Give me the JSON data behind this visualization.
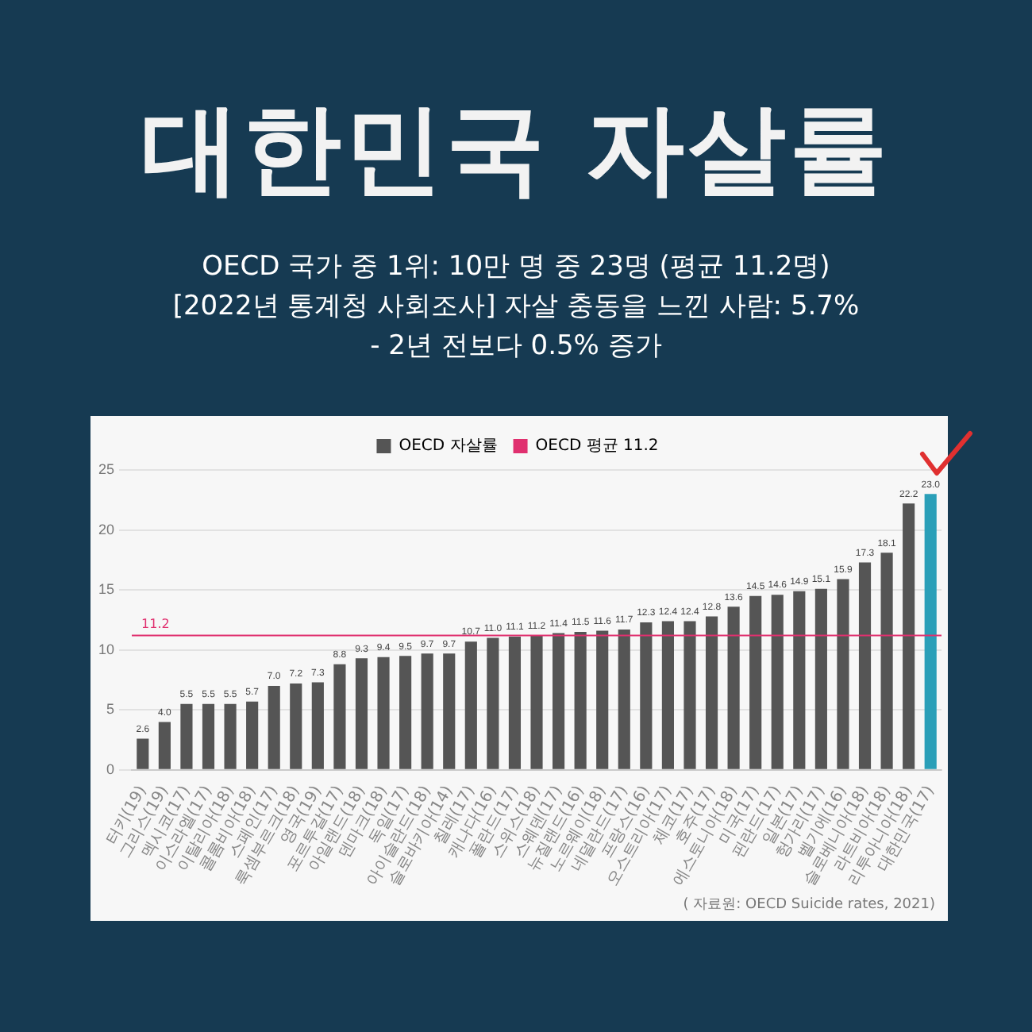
{
  "chart_data": {
    "type": "bar",
    "title": "대한민국 자살률",
    "subtitle": "OECD 국가 중 1위: 10만 명 중 23명 (평균 11.2명)\n[2022년 통계청 사회조사] 자살 충동을 느낀 사람: 5.7%\n- 2년 전보다 0.5% 증가",
    "categories": [
      "터키(19)",
      "그리스(19)",
      "멕시코(17)",
      "이스라엘(17)",
      "이탈리아(18)",
      "콜롬비아(18)",
      "스페인(17)",
      "룩셈부르크(18)",
      "영국(19)",
      "포르투갈(17)",
      "아일랜드(18)",
      "덴마크(18)",
      "독일(17)",
      "아이슬란드(18)",
      "슬로바키아(14)",
      "칠레(17)",
      "캐나다(16)",
      "폴란드(17)",
      "스위스(18)",
      "스웨덴(17)",
      "뉴질랜드(16)",
      "노르웨이(18)",
      "네덜란드(17)",
      "프랑스(16)",
      "오스트리아(17)",
      "체코(17)",
      "호주(17)",
      "에스토니아(18)",
      "미국(17)",
      "핀란드(17)",
      "일본(17)",
      "헝가리(17)",
      "벨기에(16)",
      "슬로베니아(18)",
      "라트비아(18)",
      "리투아니아(18)",
      "대한민국(17)"
    ],
    "series": [
      {
        "name": "OECD 자살률",
        "color": "#555555",
        "colors": [
          "#555555",
          "#555555",
          "#555555",
          "#555555",
          "#555555",
          "#555555",
          "#555555",
          "#555555",
          "#555555",
          "#555555",
          "#555555",
          "#555555",
          "#555555",
          "#555555",
          "#555555",
          "#555555",
          "#555555",
          "#555555",
          "#555555",
          "#555555",
          "#555555",
          "#555555",
          "#555555",
          "#555555",
          "#555555",
          "#555555",
          "#555555",
          "#555555",
          "#555555",
          "#555555",
          "#555555",
          "#555555",
          "#555555",
          "#555555",
          "#555555",
          "#555555",
          "#2a9fb8"
        ],
        "values": [
          2.6,
          4.0,
          5.5,
          5.5,
          5.5,
          5.7,
          7.0,
          7.2,
          7.3,
          8.8,
          9.3,
          9.4,
          9.5,
          9.7,
          9.7,
          10.7,
          11.0,
          11.1,
          11.2,
          11.4,
          11.5,
          11.6,
          11.7,
          12.3,
          12.4,
          12.4,
          12.8,
          13.6,
          14.5,
          14.6,
          14.9,
          15.1,
          15.9,
          17.3,
          18.1,
          22.2,
          23.0
        ],
        "value_labels": [
          "2.6",
          "4.0",
          "5.5",
          "5.5",
          "5.5",
          "5.7",
          "7.0",
          "7.2",
          "7.3",
          "8.8",
          "9.3",
          "9.4",
          "9.5",
          "9.7",
          "9.7",
          "10.7",
          "11.0",
          "11.1",
          "11.2",
          "11.4",
          "11.5",
          "11.6",
          "11.7",
          "12.3",
          "12.4",
          "12.4",
          "12.8",
          "13.6",
          "14.5",
          "14.6",
          "14.9",
          "15.1",
          "15.9",
          "17.3",
          "18.1",
          "22.2",
          "23.0"
        ]
      }
    ],
    "ylim": [
      0,
      25
    ],
    "yticks": [
      0,
      5,
      10,
      15,
      20,
      25
    ],
    "grid": "y",
    "legend": "top",
    "ref_lines": [
      {
        "axis": "y",
        "value": 11.2,
        "label": "OECD 평균 11.2",
        "color": "#e0306f"
      }
    ],
    "annotations": [
      {
        "text": "11.2",
        "y": 11.2
      },
      "( 자료원: OECD Suicide rates, 2021)"
    ]
  }
}
